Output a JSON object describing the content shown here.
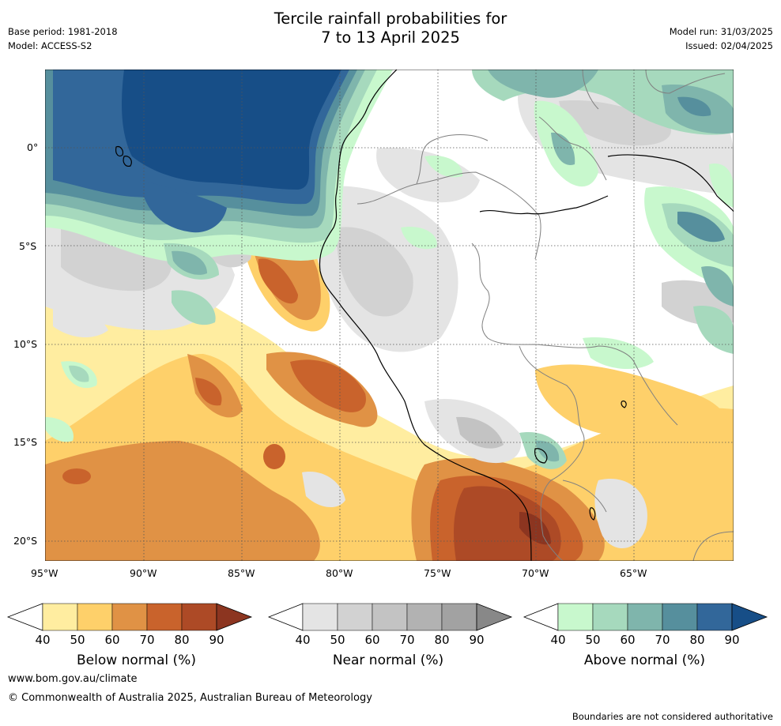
{
  "header": {
    "title_line1": "Tercile rainfall probabilities for",
    "title_line2": "7 to 13 April 2025",
    "base_period": "Base period: 1981-2018",
    "model": "Model: ACCESS-S2",
    "model_run": "Model run: 31/03/2025",
    "issued": "Issued: 02/04/2025"
  },
  "map": {
    "lon_labels": [
      "95°W",
      "90°W",
      "85°W",
      "80°W",
      "75°W",
      "70°W",
      "65°W"
    ],
    "lat_labels": [
      "0°",
      "5°S",
      "10°S",
      "15°S",
      "20°S"
    ]
  },
  "colorbars": [
    {
      "title": "Below normal (%)",
      "ticks": [
        "40",
        "50",
        "60",
        "70",
        "80",
        "90"
      ],
      "colors": [
        "#ffeda0",
        "#fed06a",
        "#e09245",
        "#c9632c",
        "#ad4a26"
      ],
      "extend_color": "#8c3520"
    },
    {
      "title": "Near normal (%)",
      "ticks": [
        "40",
        "50",
        "60",
        "70",
        "80",
        "90"
      ],
      "colors": [
        "#e4e4e4",
        "#d2d2d2",
        "#c3c3c3",
        "#b2b2b2",
        "#a2a2a2"
      ],
      "extend_color": "#888888"
    },
    {
      "title": "Above normal (%)",
      "ticks": [
        "40",
        "50",
        "60",
        "70",
        "80",
        "90"
      ],
      "colors": [
        "#c8f8cd",
        "#a6d9bd",
        "#7fb5ac",
        "#568f9d",
        "#32679a"
      ],
      "extend_color": "#174e87"
    }
  ],
  "footer": {
    "website": "www.bom.gov.au/climate",
    "copyright": "© Commonwealth of Australia 2025, Australian Bureau of Meteorology",
    "disclaimer": "Boundaries are not considered authoritative"
  }
}
